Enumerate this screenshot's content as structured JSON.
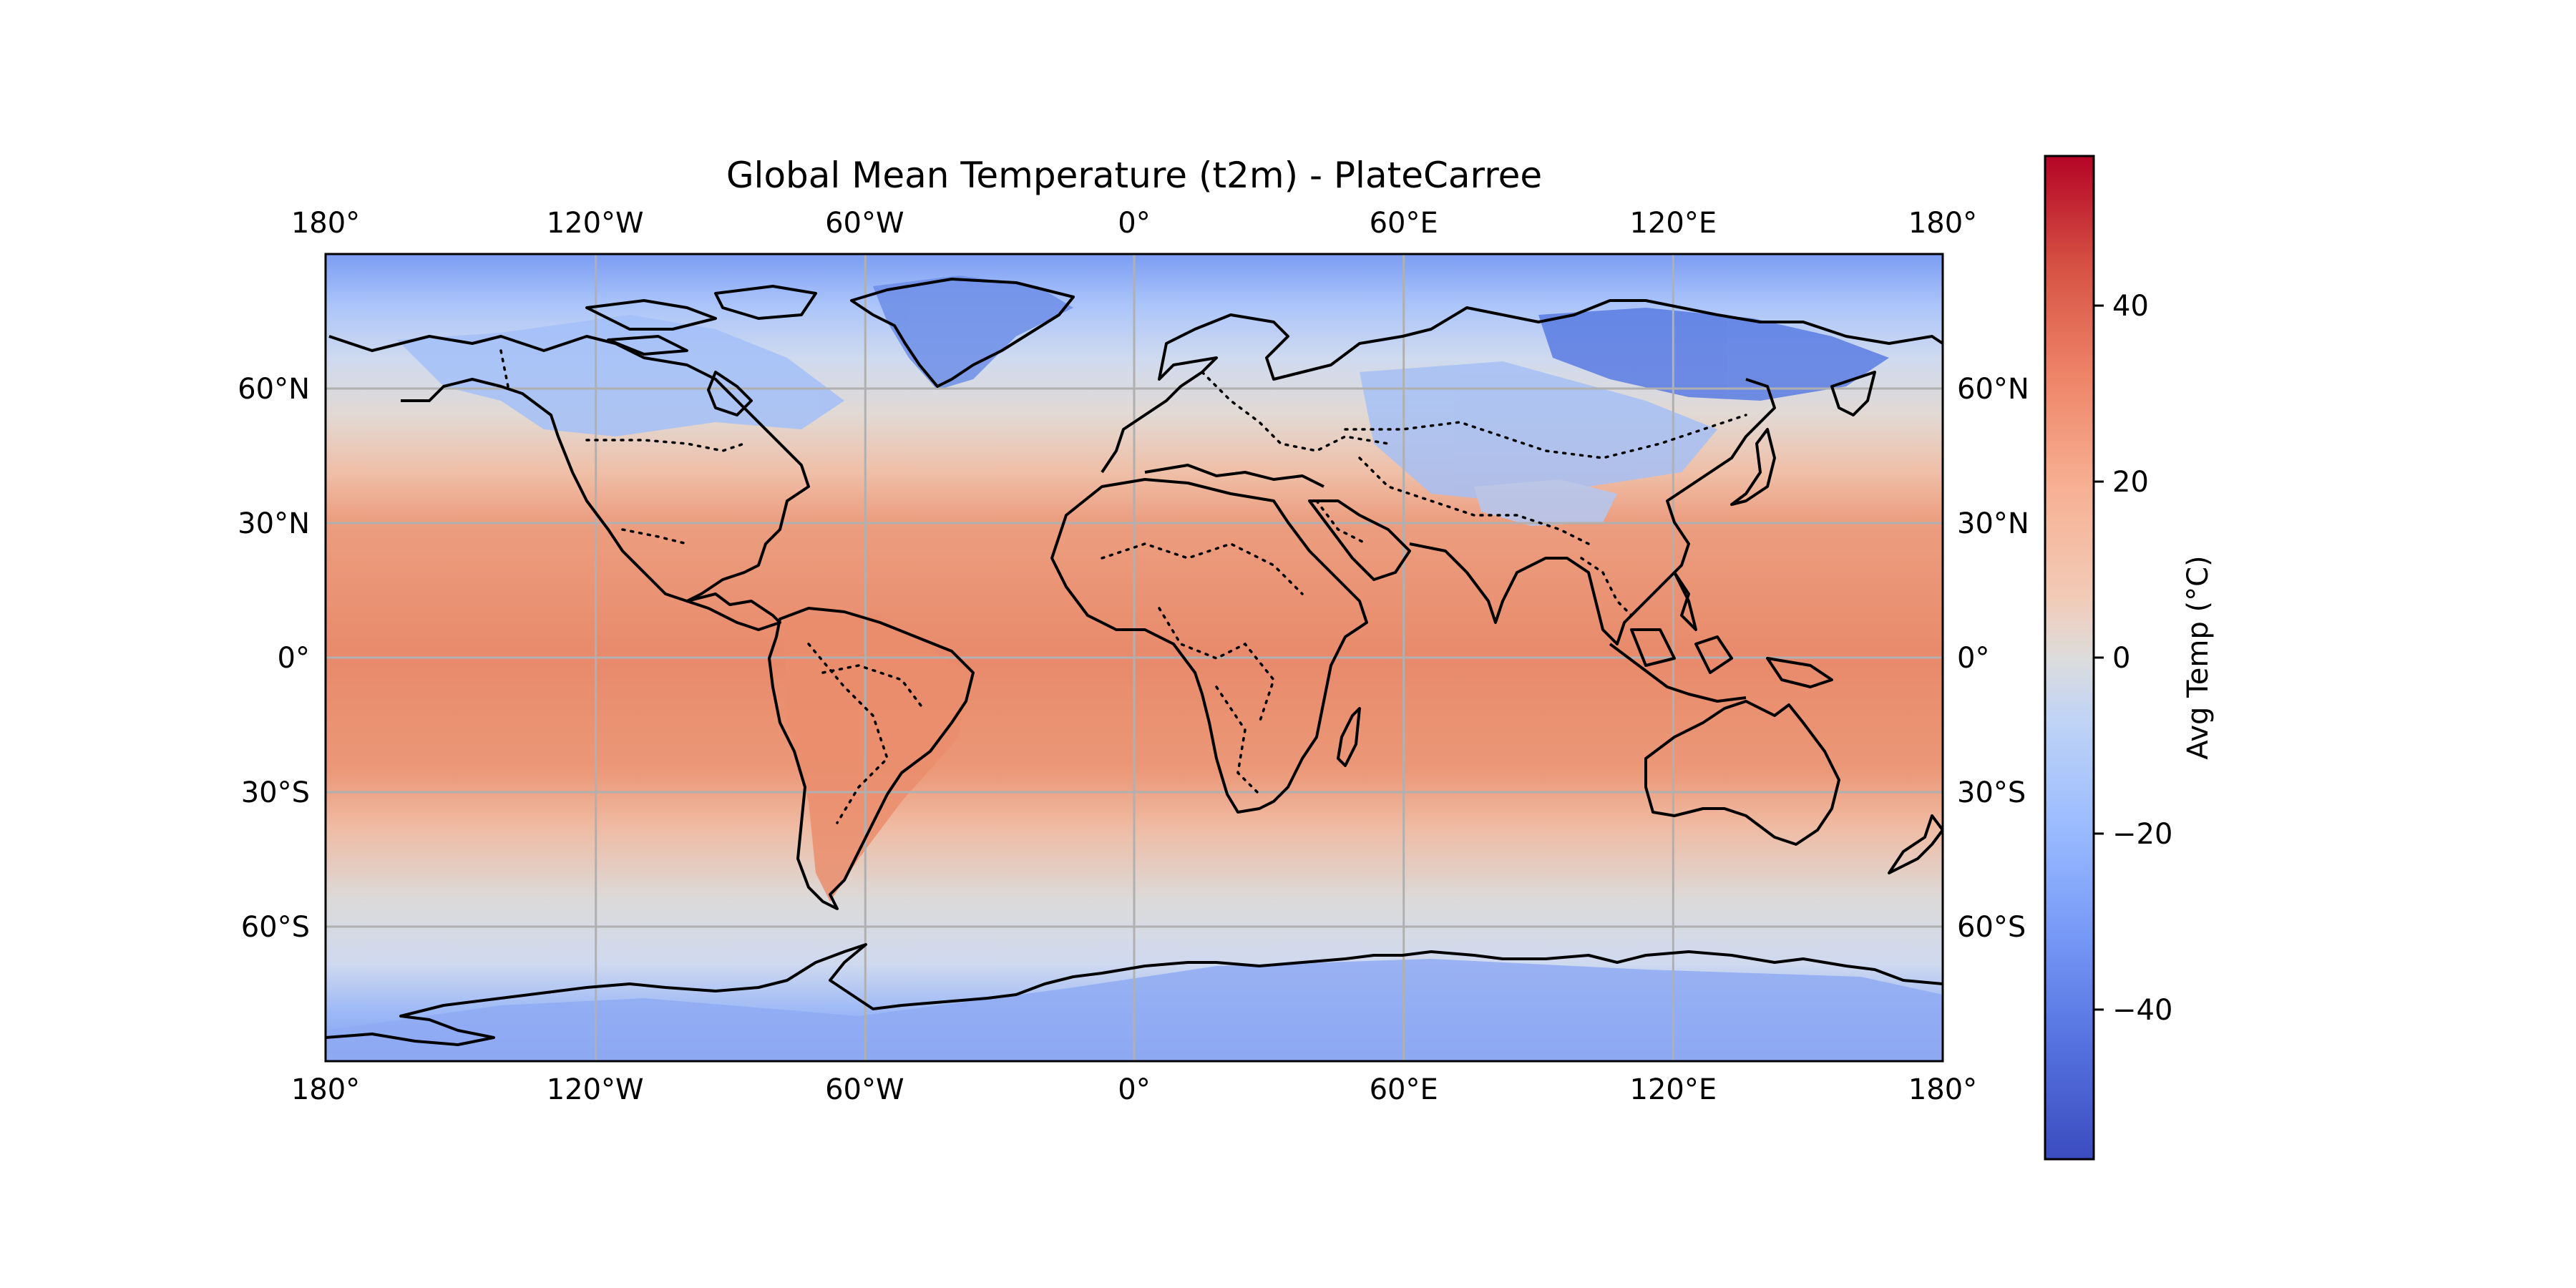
{
  "title": "Global Mean Temperature (t2m) - PlateCarree",
  "map": {
    "projection": "PlateCarree",
    "lon_range": [
      -180,
      180
    ],
    "lat_range": [
      -90,
      90
    ],
    "gridlines": true,
    "lon_ticks": [
      {
        "value": -180,
        "label": "180°"
      },
      {
        "value": -120,
        "label": "120°W"
      },
      {
        "value": -60,
        "label": "60°W"
      },
      {
        "value": 0,
        "label": "0°"
      },
      {
        "value": 60,
        "label": "60°E"
      },
      {
        "value": 120,
        "label": "120°E"
      },
      {
        "value": 180,
        "label": "180°"
      }
    ],
    "lat_ticks": [
      {
        "value": 60,
        "label": "60°N"
      },
      {
        "value": 30,
        "label": "30°N"
      },
      {
        "value": 0,
        "label": "0°"
      },
      {
        "value": -30,
        "label": "30°S"
      },
      {
        "value": -60,
        "label": "60°S"
      }
    ],
    "features": [
      "coastlines",
      "country-borders"
    ],
    "colors": {
      "grid": "#b0b0b0",
      "coast": "#000000",
      "border": "#000000"
    }
  },
  "colorbar": {
    "label": "Avg Temp (°C)",
    "colormap": "coolwarm",
    "vmin": -57,
    "vmax": 57,
    "ticks": [
      {
        "value": 40,
        "label": "40"
      },
      {
        "value": 20,
        "label": "20"
      },
      {
        "value": 0,
        "label": "0"
      },
      {
        "value": -20,
        "label": "−20"
      },
      {
        "value": -40,
        "label": "−40"
      }
    ],
    "colors": [
      "#3b4cc0",
      "#6788ee",
      "#9abbff",
      "#c9d7f0",
      "#dddcdc",
      "#f2c8b3",
      "#f3a481",
      "#e7745b",
      "#c7362f",
      "#b40426"
    ]
  }
}
